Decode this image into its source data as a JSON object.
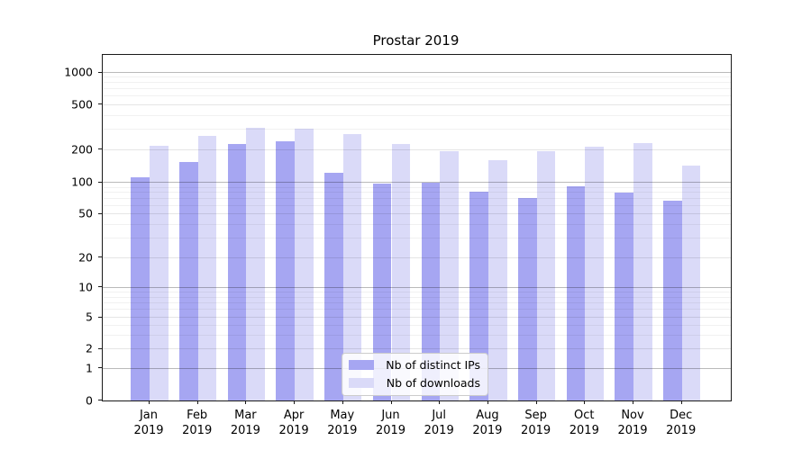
{
  "title": "Prostar 2019",
  "chart_data": {
    "type": "bar",
    "title": "Prostar 2019",
    "subtitle": "",
    "xlabel": "",
    "ylabel": "",
    "yscale": "symlog",
    "grid": true,
    "legend_position": "inside-bottom-center",
    "categories": [
      "Jan 2019",
      "Feb 2019",
      "Mar 2019",
      "Apr 2019",
      "May 2019",
      "Jun 2019",
      "Jul 2019",
      "Aug 2019",
      "Sep 2019",
      "Oct 2019",
      "Nov 2019",
      "Dec 2019"
    ],
    "series": [
      {
        "name": "Nb of distinct IPs",
        "color": "#a6a6f2",
        "values": [
          112,
          153,
          225,
          235,
          122,
          97,
          100,
          82,
          71,
          92,
          80,
          67
        ]
      },
      {
        "name": "Nb of downloads",
        "color": "#dadaf8",
        "values": [
          215,
          265,
          308,
          305,
          273,
          222,
          193,
          160,
          193,
          212,
          228,
          143
        ]
      }
    ],
    "y_ticks": [
      0,
      1,
      2,
      5,
      10,
      20,
      50,
      100,
      200,
      500,
      1000
    ],
    "ylim": [
      0,
      1500
    ],
    "colors": {
      "major_gridline": "#b3b3b3",
      "minor_gridline": "#ececec",
      "axis": "#1a1a1a",
      "background": "#ffffff"
    }
  }
}
